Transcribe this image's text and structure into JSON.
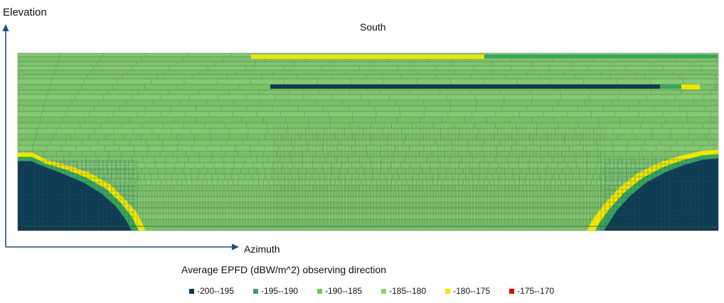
{
  "chart_data": {
    "type": "heatmap",
    "title": "South",
    "xlabel": "Azimuth",
    "ylabel": "Elevation",
    "caption": "Average EPFD (dBW/m^2) observing direction",
    "grid": false,
    "legend_position": "bottom",
    "legend": [
      {
        "label": "-200--195",
        "color": "#0e3a52",
        "range": [
          -200,
          -195
        ]
      },
      {
        "label": "-195--190",
        "color": "#3aa55a",
        "range": [
          -195,
          -190
        ]
      },
      {
        "label": "-190--185",
        "color": "#7bbf6a",
        "range": [
          -190,
          -185
        ]
      },
      {
        "label": "-185--180",
        "color": "#8fcf7c",
        "range": [
          -185,
          -180
        ]
      },
      {
        "label": "-180--175",
        "color": "#f2e500",
        "range": [
          -180,
          -175
        ]
      },
      {
        "label": "-175--170",
        "color": "#e00000",
        "range": [
          -175,
          -170
        ]
      }
    ],
    "regions": [
      {
        "name": "lower-left corner",
        "range": [
          -200,
          -195
        ]
      },
      {
        "name": "lower-right corner",
        "range": [
          -200,
          -195
        ]
      },
      {
        "name": "corner boundary",
        "range": [
          -180,
          -175
        ]
      },
      {
        "name": "main field",
        "range": [
          -190,
          -185
        ]
      }
    ]
  }
}
